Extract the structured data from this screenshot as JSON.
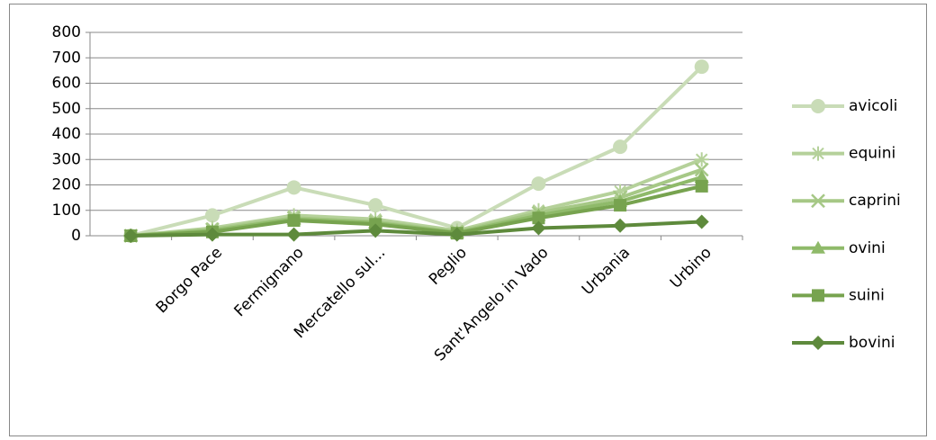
{
  "chart_data": {
    "type": "line",
    "categories": [
      null,
      "Borgo Pace",
      "Fermignano",
      "Mercatello sul...",
      "Peglio",
      "Sant'Angelo in Vado",
      "Urbania",
      "Urbino"
    ],
    "series": [
      {
        "name": "avicoli",
        "color": "#c9dcb7",
        "marker": "circle",
        "values": [
          0,
          80,
          190,
          120,
          30,
          205,
          350,
          665
        ]
      },
      {
        "name": "equini",
        "color": "#b5d19a",
        "marker": "asterisk",
        "values": [
          0,
          30,
          80,
          65,
          20,
          100,
          175,
          300
        ]
      },
      {
        "name": "caprini",
        "color": "#a6c886",
        "marker": "x",
        "values": [
          0,
          25,
          70,
          55,
          15,
          90,
          150,
          260
        ]
      },
      {
        "name": "ovini",
        "color": "#8fba6a",
        "marker": "triangle",
        "values": [
          0,
          20,
          65,
          50,
          12,
          80,
          135,
          230
        ]
      },
      {
        "name": "suini",
        "color": "#77a34f",
        "marker": "square",
        "values": [
          0,
          15,
          60,
          45,
          10,
          70,
          120,
          195
        ]
      },
      {
        "name": "bovini",
        "color": "#5e8a3c",
        "marker": "diamond",
        "values": [
          0,
          5,
          5,
          20,
          5,
          30,
          40,
          55
        ]
      }
    ],
    "ylim": [
      0,
      800
    ],
    "yticks": [
      0,
      100,
      200,
      300,
      400,
      500,
      600,
      700,
      800
    ],
    "grid": true,
    "legend": "right"
  }
}
